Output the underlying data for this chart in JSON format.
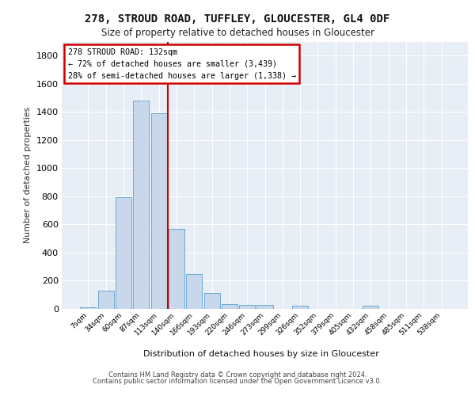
{
  "title1": "278, STROUD ROAD, TUFFLEY, GLOUCESTER, GL4 0DF",
  "title2": "Size of property relative to detached houses in Gloucester",
  "xlabel": "Distribution of detached houses by size in Gloucester",
  "ylabel": "Number of detached properties",
  "bar_color": "#c8d8ea",
  "bar_edge_color": "#6aaad4",
  "background_color": "#ffffff",
  "plot_bg_color": "#e8eef6",
  "grid_color": "#ffffff",
  "categories": [
    "7sqm",
    "34sqm",
    "60sqm",
    "87sqm",
    "113sqm",
    "140sqm",
    "166sqm",
    "193sqm",
    "220sqm",
    "246sqm",
    "273sqm",
    "299sqm",
    "326sqm",
    "352sqm",
    "379sqm",
    "405sqm",
    "432sqm",
    "458sqm",
    "485sqm",
    "511sqm",
    "538sqm"
  ],
  "values": [
    10,
    130,
    795,
    1480,
    1390,
    570,
    250,
    115,
    35,
    30,
    30,
    0,
    20,
    0,
    0,
    0,
    20,
    0,
    0,
    0,
    0
  ],
  "ylim": [
    0,
    1900
  ],
  "yticks": [
    0,
    200,
    400,
    600,
    800,
    1000,
    1200,
    1400,
    1600,
    1800
  ],
  "vline_x": 4.5,
  "annotation_line1": "278 STROUD ROAD: 132sqm",
  "annotation_line2": "← 72% of detached houses are smaller (3,439)",
  "annotation_line3": "28% of semi-detached houses are larger (1,338) →",
  "annotation_box_color": "#ffffff",
  "annotation_box_edge": "#cc0000",
  "vline_color": "#cc0000",
  "footer1": "Contains HM Land Registry data © Crown copyright and database right 2024.",
  "footer2": "Contains public sector information licensed under the Open Government Licence v3.0."
}
